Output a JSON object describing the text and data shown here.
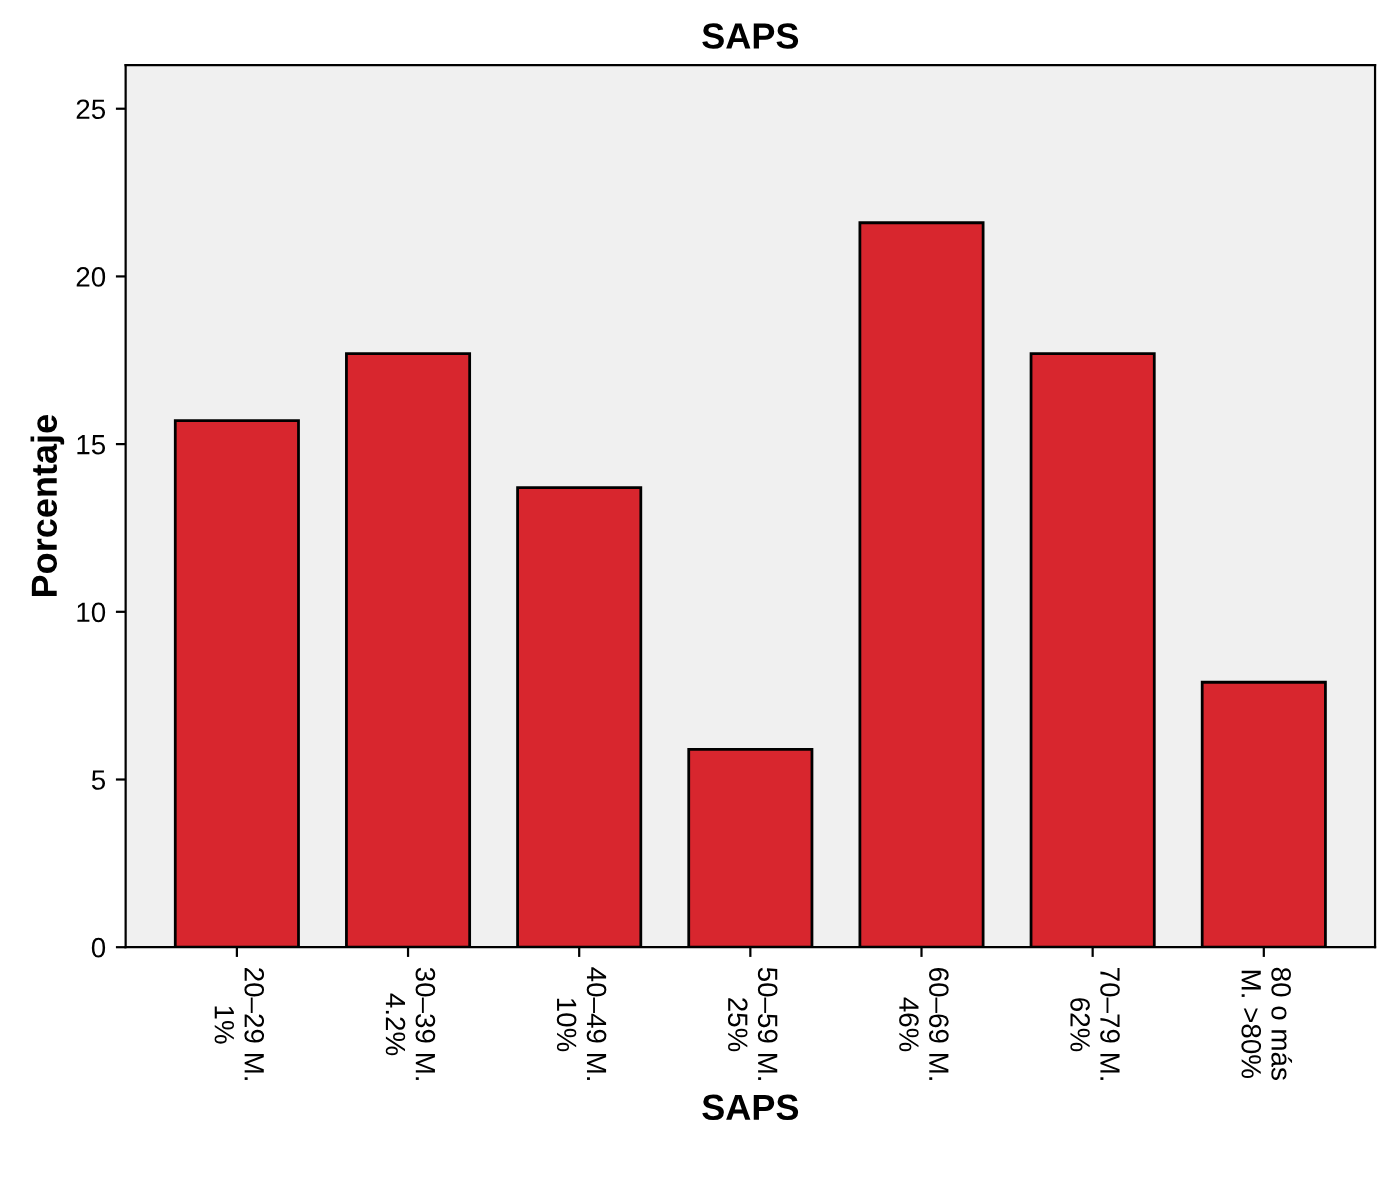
{
  "chart_data": {
    "type": "bar",
    "title": "SAPS",
    "xlabel": "SAPS",
    "ylabel": "Porcentaje",
    "categories": [
      "20–29 M.\n1%",
      "30–39 M.\n4.2%",
      "40–49 M.\n10%",
      "50–59 M.\n25%",
      "60–69 M.\n46%",
      "70–79 M.\n62%",
      "80 o más\nM. >80%"
    ],
    "values": [
      15.7,
      17.7,
      13.7,
      5.9,
      21.6,
      17.7,
      7.9
    ],
    "color": "#d8262e",
    "ylim": [
      0,
      26.3
    ],
    "yticks": [
      0,
      5,
      10,
      15,
      20,
      25
    ],
    "grid": false,
    "legend": false
  }
}
